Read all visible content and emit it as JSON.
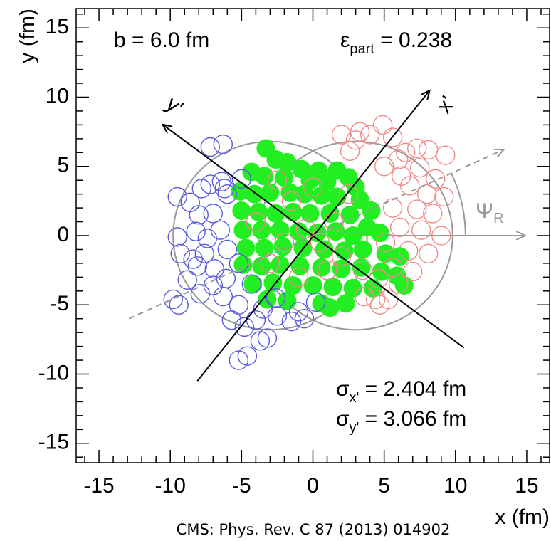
{
  "chart_data": {
    "type": "scatter",
    "xlabel": "x (fm)",
    "ylabel": "y (fm)",
    "xlim": [
      -16.6,
      16.6
    ],
    "ylim": [
      -16.4,
      16.4
    ],
    "xticks": [
      -15,
      -10,
      -5,
      0,
      5,
      10,
      15
    ],
    "yticks": [
      -15,
      -10,
      -5,
      0,
      5,
      10,
      15
    ],
    "xminorticks": [
      -16,
      -14,
      -13,
      -12,
      -11,
      -9,
      -8,
      -7,
      -6,
      -4,
      -3,
      -2,
      -1,
      1,
      2,
      3,
      4,
      6,
      7,
      8,
      9,
      11,
      12,
      13,
      14,
      16
    ],
    "yminorticks": [
      -16,
      -14,
      -13,
      -12,
      -11,
      -9,
      -8,
      -7,
      -6,
      -4,
      -3,
      -2,
      -1,
      1,
      2,
      3,
      4,
      6,
      7,
      8,
      9,
      11,
      12,
      13,
      14,
      16
    ],
    "impact": "b =  6.0 fm",
    "ecc": {
      "symbol": "ε",
      "sub": "part",
      "text": " = 0.238"
    },
    "sigma_x": {
      "symbol": "σ",
      "sub": "x'",
      "text": " = 2.404 fm"
    },
    "sigma_y": {
      "symbol": "σ",
      "sub": "y'",
      "text": " = 3.066 fm"
    },
    "axis_xp": "x'",
    "axis_yp": "y'",
    "psi": {
      "symbol": "Ψ",
      "sub": "R"
    },
    "citation": "CMS: Phys. Rev. C 87 (2013) 014902",
    "nuclei": [
      {
        "x": -3,
        "y": 0,
        "r": 6.8
      },
      {
        "x": 3,
        "y": 0,
        "r": 6.8
      }
    ],
    "lines": [
      {
        "x": [
          -8.1,
          8.16
        ],
        "y": [
          -10.5,
          10.45
        ],
        "color": "#000000",
        "dashed": false
      },
      {
        "x": [
          10.6,
          -10.5
        ],
        "y": [
          -8.1,
          8.0
        ],
        "color": "#000000",
        "dashed": false
      },
      {
        "x": [
          -12.9,
          13.35
        ],
        "y": [
          -6.0,
          6.2
        ],
        "color": "#999999",
        "dashed": true
      },
      {
        "x": [
          0,
          14.85
        ],
        "y": [
          0,
          0
        ],
        "color": "#999999",
        "dashed": false
      }
    ],
    "psi_arc": {
      "r": 10.7,
      "angle": 24.9
    },
    "series": [
      {
        "color": "#22ee22",
        "filled": true,
        "x": [
          -3.3,
          -2.6,
          -1.8,
          -0.8,
          0.4,
          1.7,
          -4.3,
          -3.4,
          -2.0,
          -0.2,
          1.0,
          2.5,
          3.0,
          -5.1,
          -4.1,
          -3.0,
          -1.6,
          -0.6,
          0.6,
          1.7,
          3.3,
          4.1,
          -5.0,
          -3.8,
          -2.6,
          -1.4,
          -0.2,
          1.2,
          2.6,
          3.8,
          4.7,
          -4.9,
          -3.6,
          -2.3,
          -1.0,
          0.3,
          1.6,
          2.8,
          -4.7,
          -3.4,
          -2.1,
          -0.7,
          0.8,
          2.2,
          3.5,
          5.1,
          6.1,
          -4.9,
          -3.6,
          -2.3,
          -0.9,
          0.6,
          2.0,
          3.4,
          4.8,
          5.9,
          6.4,
          -4.2,
          -2.8,
          -1.4,
          0.0,
          1.4,
          2.8,
          4.2,
          -3.2,
          -1.8,
          0.6,
          1.2,
          2.3
        ],
        "y": [
          6.3,
          5.5,
          5.3,
          4.8,
          4.7,
          4.7,
          4.6,
          4.3,
          4.2,
          4.0,
          3.9,
          4.2,
          3.5,
          3.2,
          3.0,
          3.1,
          3.1,
          3.0,
          2.9,
          2.8,
          2.6,
          1.8,
          1.8,
          1.7,
          1.6,
          1.7,
          1.6,
          1.6,
          1.5,
          0.6,
          0.2,
          0.4,
          0.4,
          0.4,
          0.3,
          0.2,
          0.3,
          0.0,
          -0.9,
          -0.9,
          -0.8,
          -0.9,
          -1.0,
          -1.1,
          -1.0,
          -1.3,
          -1.5,
          -2.1,
          -2.2,
          -2.1,
          -2.2,
          -2.3,
          -2.4,
          -2.3,
          -2.6,
          -2.9,
          -3.6,
          -3.5,
          -3.4,
          -3.6,
          -3.6,
          -3.7,
          -3.8,
          -3.8,
          -4.6,
          -4.7,
          -4.9,
          -5.2,
          -4.9
        ]
      },
      {
        "color": "#5a5ae0",
        "filled": false,
        "x": [
          -7.2,
          -6.3,
          -9.5,
          -7.8,
          -7.2,
          -6.4,
          -6.2,
          -8.6,
          -9.5,
          -8.2,
          -7.4,
          -6.5,
          -9.3,
          -8.4,
          -7.6,
          -8.1,
          -6.9,
          -6.1,
          -7.0,
          -9.8,
          -9.4,
          -6.3,
          -5.2,
          -5.7,
          -4.8,
          -3.7,
          -3.2,
          -4.6,
          -5.2,
          -2.5,
          -1.5,
          -3.5,
          -2.6,
          -1.0,
          -8.0,
          -7.0,
          -6.0,
          -5.2,
          -4.3,
          -5.0,
          -6.0,
          -8.8,
          -0.6,
          0.2,
          -4.0,
          -7.9
        ],
        "y": [
          6.4,
          6.6,
          2.8,
          3.4,
          3.7,
          3.9,
          3.4,
          2.4,
          -0.1,
          0.3,
          -0.2,
          0.4,
          -1.3,
          -1.7,
          -1.3,
          -2.2,
          -2.4,
          -3.1,
          -3.6,
          -4.6,
          -5.0,
          -4.4,
          -5.0,
          -6.1,
          -6.6,
          -7.6,
          -7.4,
          -8.7,
          -9.0,
          -5.8,
          -6.2,
          -5.3,
          -4.5,
          -5.5,
          1.5,
          1.6,
          -1.0,
          -2.0,
          -3.5,
          4.1,
          3.0,
          -3.2,
          -6.0,
          -4.8,
          -6.1,
          -4.2
        ]
      },
      {
        "color": "#f08a8a",
        "filled": false,
        "x": [
          2.0,
          3.3,
          4.0,
          3.0,
          4.9,
          5.6,
          6.5,
          7.3,
          8.1,
          9.3,
          2.6,
          5.0,
          6.0,
          7.5,
          8.6,
          6.2,
          6.8,
          8.0,
          9.2,
          5.6,
          7.3,
          8.4,
          6.1,
          7.6,
          9.0,
          5.1,
          6.7,
          8.1,
          5.6,
          7.0,
          4.6,
          6.0,
          3.6,
          4.4,
          5.3,
          4.7,
          3.5,
          2.0,
          1.5,
          0.5,
          -0.5,
          -2.0,
          -1.5,
          0.0,
          2.5,
          -3.0,
          -1.0,
          1.0,
          -4.0,
          -2.5
        ],
        "y": [
          7.3,
          7.5,
          7.3,
          6.9,
          8.0,
          7.1,
          6.0,
          6.3,
          6.2,
          5.8,
          6.1,
          5.0,
          5.5,
          4.9,
          4.1,
          4.3,
          3.6,
          3.0,
          2.8,
          2.0,
          1.9,
          1.6,
          0.6,
          0.4,
          0.0,
          -0.5,
          -1.1,
          -1.3,
          -2.3,
          -2.6,
          -3.1,
          -3.5,
          -4.4,
          -4.6,
          -4.6,
          -5.0,
          -2.5,
          -1.5,
          1.0,
          -0.5,
          0.5,
          -0.5,
          2.5,
          3.5,
          3.0,
          -2.0,
          -3.0,
          -2.5,
          1.0,
          4.0
        ]
      }
    ]
  }
}
